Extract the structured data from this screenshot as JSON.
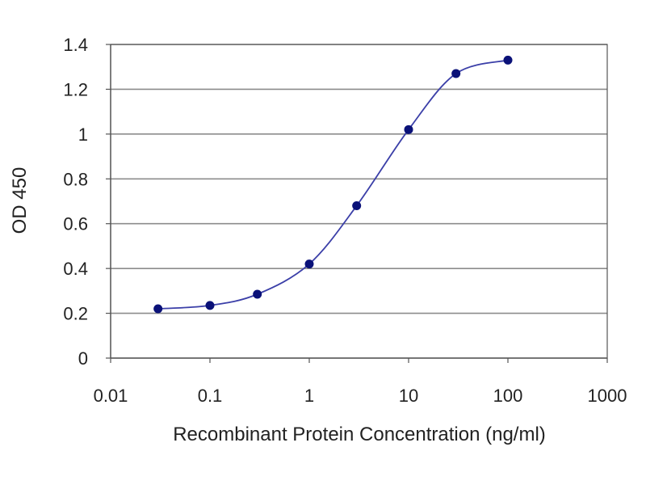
{
  "chart_data": {
    "type": "line",
    "title": "",
    "xlabel": "Recombinant Protein Concentration (ng/ml)",
    "ylabel": "OD 450",
    "xscale": "log",
    "xlim": [
      0.01,
      1000
    ],
    "ylim": [
      0,
      1.4
    ],
    "x_ticks": [
      0.01,
      0.1,
      1,
      10,
      100,
      1000
    ],
    "x_tick_labels": [
      "0.01",
      "0.1",
      "1",
      "10",
      "100",
      "1000"
    ],
    "y_ticks": [
      0,
      0.2,
      0.4,
      0.6,
      0.8,
      1,
      1.2,
      1.4
    ],
    "y_tick_labels": [
      "0",
      "0.2",
      "0.4",
      "0.6",
      "0.8",
      "1",
      "1.2",
      "1.4"
    ],
    "grid": "horizontal",
    "legend": "none",
    "series": [
      {
        "x": [
          0.03,
          0.1,
          0.3,
          1,
          3,
          10,
          30,
          100
        ],
        "y": [
          0.22,
          0.235,
          0.285,
          0.42,
          0.68,
          1.02,
          1.27,
          1.33
        ]
      }
    ],
    "colors": {
      "line": "#3b3fa8",
      "marker": "#0a1178",
      "grid": "#8c8c8c",
      "axis": "#555555",
      "text": "#222222"
    }
  }
}
